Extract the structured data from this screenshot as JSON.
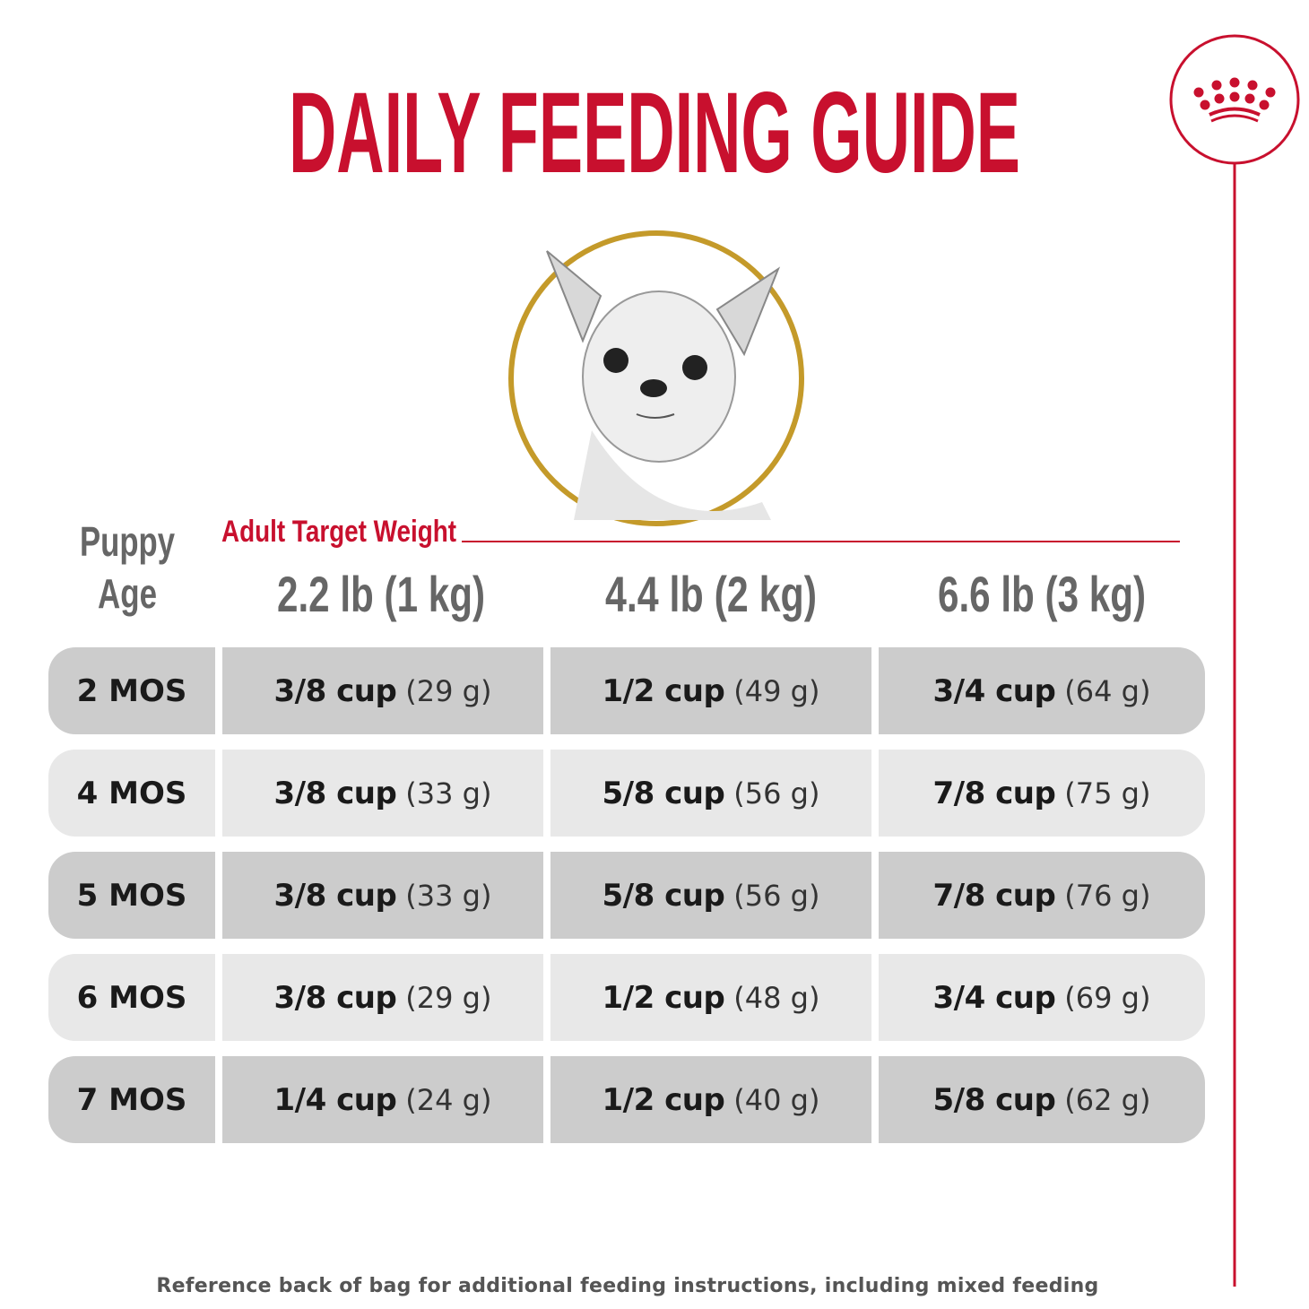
{
  "title": "DAILY FEEDING GUIDE",
  "brand_icon": "crown-icon",
  "colors": {
    "brand_red": "#c8102e",
    "gold": "#c49a2a",
    "row_dark": "#cccccc",
    "row_light": "#e8e8e8"
  },
  "header": {
    "age_label_line1": "Puppy",
    "age_label_line2": "Age",
    "weight_label": "Adult Target Weight",
    "weights": [
      "2.2 lb (1 kg)",
      "4.4 lb (2 kg)",
      "6.6 lb (3 kg)"
    ]
  },
  "rows": [
    {
      "age": "2 MOS",
      "cells": [
        {
          "cup": "3/8 cup",
          "g": "(29 g)"
        },
        {
          "cup": "1/2 cup",
          "g": "(49 g)"
        },
        {
          "cup": "3/4 cup",
          "g": "(64 g)"
        }
      ]
    },
    {
      "age": "4 MOS",
      "cells": [
        {
          "cup": "3/8 cup",
          "g": "(33 g)"
        },
        {
          "cup": "5/8 cup",
          "g": "(56 g)"
        },
        {
          "cup": "7/8 cup",
          "g": "(75 g)"
        }
      ]
    },
    {
      "age": "5 MOS",
      "cells": [
        {
          "cup": "3/8 cup",
          "g": "(33 g)"
        },
        {
          "cup": "5/8 cup",
          "g": "(56 g)"
        },
        {
          "cup": "7/8 cup",
          "g": "(76 g)"
        }
      ]
    },
    {
      "age": "6 MOS",
      "cells": [
        {
          "cup": "3/8 cup",
          "g": "(29 g)"
        },
        {
          "cup": "1/2 cup",
          "g": "(48 g)"
        },
        {
          "cup": "3/4 cup",
          "g": "(69 g)"
        }
      ]
    },
    {
      "age": "7 MOS",
      "cells": [
        {
          "cup": "1/4 cup",
          "g": "(24 g)"
        },
        {
          "cup": "1/2 cup",
          "g": "(40 g)"
        },
        {
          "cup": "5/8 cup",
          "g": "(62 g)"
        }
      ]
    }
  ],
  "footer": "Reference back of bag for additional feeding instructions, including mixed feeding"
}
